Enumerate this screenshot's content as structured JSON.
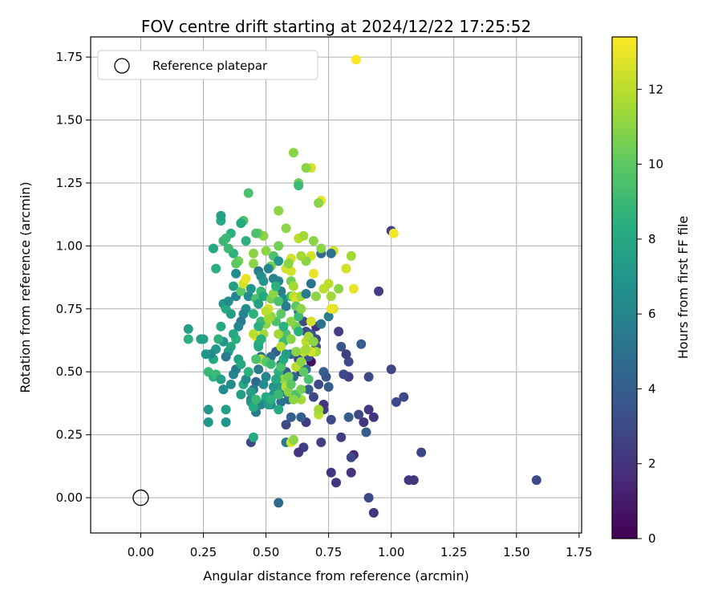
{
  "chart_data": {
    "type": "scatter",
    "title": "FOV centre drift starting at 2024/12/22 17:25:52",
    "xlabel": "Angular distance from reference (arcmin)",
    "ylabel": "Rotation from reference (arcmin)",
    "xlim": [
      -0.2,
      1.76
    ],
    "ylim": [
      -0.14,
      1.83
    ],
    "xticks": [
      "0.00",
      "0.25",
      "0.50",
      "0.75",
      "1.00",
      "1.25",
      "1.50",
      "1.75"
    ],
    "yticks": [
      "0.00",
      "0.25",
      "0.50",
      "0.75",
      "1.00",
      "1.25",
      "1.50",
      "1.75"
    ],
    "grid": true,
    "legend": {
      "placement": "top-left",
      "entries": [
        "Reference platepar"
      ]
    },
    "reference_point": {
      "x": 0.0,
      "y": 0.0
    },
    "colorbar": {
      "label": "Hours from first FF file",
      "colormap": "viridis",
      "range": [
        0,
        13.4
      ],
      "ticks": [
        "0",
        "2",
        "4",
        "6",
        "8",
        "10",
        "12"
      ]
    },
    "points": [
      [
        1.58,
        0.07,
        3.0
      ],
      [
        1.12,
        0.18,
        2.8
      ],
      [
        1.09,
        0.07,
        2.0
      ],
      [
        1.07,
        0.07,
        2.1
      ],
      [
        1.05,
        0.4,
        3.0
      ],
      [
        1.02,
        0.38,
        3.0
      ],
      [
        1.0,
        0.51,
        2.8
      ],
      [
        1.0,
        1.06,
        2.6
      ],
      [
        1.01,
        1.05,
        13.2
      ],
      [
        0.95,
        0.82,
        2.5
      ],
      [
        0.93,
        -0.06,
        2.0
      ],
      [
        0.93,
        0.32,
        2.0
      ],
      [
        0.91,
        0.35,
        2.2
      ],
      [
        0.91,
        0.0,
        3.0
      ],
      [
        0.91,
        0.48,
        3.0
      ],
      [
        0.9,
        0.26,
        4.0
      ],
      [
        0.89,
        0.3,
        2.0
      ],
      [
        0.88,
        0.61,
        4.0
      ],
      [
        0.87,
        0.33,
        3.0
      ],
      [
        0.85,
        0.17,
        1.5
      ],
      [
        0.84,
        0.16,
        3.0
      ],
      [
        0.84,
        0.1,
        2.0
      ],
      [
        0.83,
        0.32,
        4.0
      ],
      [
        0.83,
        0.48,
        2.5
      ],
      [
        0.83,
        0.54,
        3.0
      ],
      [
        0.82,
        0.57,
        2.5
      ],
      [
        0.81,
        0.49,
        3.0
      ],
      [
        0.8,
        0.6,
        3.5
      ],
      [
        0.8,
        0.24,
        2.5
      ],
      [
        0.79,
        0.66,
        2.5
      ],
      [
        0.78,
        0.06,
        2.0
      ],
      [
        0.76,
        0.1,
        2.0
      ],
      [
        0.75,
        0.44,
        4.0
      ],
      [
        0.76,
        0.31,
        3.0
      ],
      [
        0.74,
        0.48,
        3.5
      ],
      [
        0.73,
        0.5,
        4.0
      ],
      [
        0.73,
        0.35,
        2.5
      ],
      [
        0.73,
        0.37,
        2.0
      ],
      [
        0.72,
        0.22,
        2.5
      ],
      [
        0.72,
        0.97,
        4.5
      ],
      [
        0.71,
        0.45,
        3.0
      ],
      [
        0.7,
        0.6,
        3.0
      ],
      [
        0.7,
        0.63,
        3.0
      ],
      [
        0.69,
        0.4,
        3.0
      ],
      [
        0.68,
        0.54,
        0.5
      ],
      [
        0.67,
        0.43,
        4.0
      ],
      [
        0.66,
        0.3,
        2.5
      ],
      [
        0.65,
        0.2,
        2.5
      ],
      [
        0.64,
        0.32,
        4.0
      ],
      [
        0.63,
        0.18,
        2.0
      ],
      [
        0.62,
        0.4,
        4.5
      ],
      [
        0.6,
        0.32,
        4.0
      ],
      [
        0.58,
        0.29,
        3.0
      ],
      [
        0.58,
        0.22,
        5.5
      ],
      [
        0.55,
        -0.02,
        4.5
      ],
      [
        0.56,
        0.38,
        5.0
      ],
      [
        0.57,
        0.42,
        5.0
      ],
      [
        0.59,
        0.39,
        5.0
      ],
      [
        0.61,
        0.48,
        4.5
      ],
      [
        0.64,
        0.5,
        2.5
      ],
      [
        0.66,
        0.51,
        4.5
      ],
      [
        0.67,
        0.56,
        3.5
      ],
      [
        0.63,
        0.55,
        3.0
      ],
      [
        0.6,
        0.57,
        4.5
      ],
      [
        0.58,
        0.5,
        4.0
      ],
      [
        0.56,
        0.53,
        5.0
      ],
      [
        0.54,
        0.58,
        4.0
      ],
      [
        0.52,
        0.56,
        5.0
      ],
      [
        0.5,
        0.48,
        6.0
      ],
      [
        0.48,
        0.56,
        5.0
      ],
      [
        0.47,
        0.51,
        5.5
      ],
      [
        0.46,
        0.46,
        4.5
      ],
      [
        0.45,
        0.43,
        5.5
      ],
      [
        0.44,
        0.39,
        5.5
      ],
      [
        0.44,
        0.22,
        3.0
      ],
      [
        0.45,
        0.24,
        8.0
      ],
      [
        0.46,
        0.34,
        5.5
      ],
      [
        0.48,
        0.37,
        6.0
      ],
      [
        0.5,
        0.39,
        6.5
      ],
      [
        0.52,
        0.37,
        6.0
      ],
      [
        0.53,
        0.41,
        7.0
      ],
      [
        0.55,
        0.35,
        8.0
      ],
      [
        0.55,
        0.44,
        7.5
      ],
      [
        0.57,
        0.46,
        7.0
      ],
      [
        0.59,
        0.48,
        8.0
      ],
      [
        0.6,
        0.22,
        12.5
      ],
      [
        0.61,
        0.23,
        11.0
      ],
      [
        0.64,
        0.39,
        11.5
      ],
      [
        0.71,
        0.33,
        12.0
      ],
      [
        0.71,
        0.35,
        11.5
      ],
      [
        0.63,
        0.74,
        4.0
      ],
      [
        0.65,
        0.7,
        3.0
      ],
      [
        0.66,
        0.66,
        3.0
      ],
      [
        0.68,
        0.65,
        3.5
      ],
      [
        0.7,
        0.68,
        2.0
      ],
      [
        0.72,
        0.69,
        5.0
      ],
      [
        0.75,
        0.72,
        5.5
      ],
      [
        0.77,
        0.75,
        12.5
      ],
      [
        0.76,
        0.75,
        13.0
      ],
      [
        0.75,
        0.85,
        12.0
      ],
      [
        0.73,
        0.83,
        12.0
      ],
      [
        0.76,
        0.8,
        11.5
      ],
      [
        0.77,
        0.98,
        12.5
      ],
      [
        0.76,
        0.97,
        5.0
      ],
      [
        0.79,
        0.83,
        11.0
      ],
      [
        0.82,
        0.91,
        12.5
      ],
      [
        0.84,
        0.96,
        11.5
      ],
      [
        0.85,
        0.83,
        13.0
      ],
      [
        0.86,
        1.74,
        13.4
      ],
      [
        0.72,
        1.18,
        13.0
      ],
      [
        0.71,
        1.17,
        11.0
      ],
      [
        0.68,
        1.31,
        12.5
      ],
      [
        0.66,
        1.31,
        11.0
      ],
      [
        0.61,
        1.37,
        11.0
      ],
      [
        0.63,
        1.25,
        10.5
      ],
      [
        0.63,
        1.24,
        9.0
      ],
      [
        0.63,
        1.03,
        12.0
      ],
      [
        0.65,
        1.04,
        11.5
      ],
      [
        0.69,
        1.02,
        11.0
      ],
      [
        0.72,
        0.99,
        11.0
      ],
      [
        0.68,
        0.96,
        12.5
      ],
      [
        0.66,
        0.94,
        11.0
      ],
      [
        0.64,
        0.96,
        11.5
      ],
      [
        0.6,
        0.95,
        12.5
      ],
      [
        0.6,
        0.9,
        12.5
      ],
      [
        0.58,
        1.07,
        11.0
      ],
      [
        0.55,
        1.14,
        11.0
      ],
      [
        0.55,
        1.0,
        10.5
      ],
      [
        0.53,
        0.96,
        9.5
      ],
      [
        0.55,
        0.94,
        7.0
      ],
      [
        0.52,
        0.92,
        10.5
      ],
      [
        0.5,
        0.98,
        11.0
      ],
      [
        0.49,
        1.04,
        11.0
      ],
      [
        0.47,
        1.05,
        10.5
      ],
      [
        0.46,
        1.05,
        9.5
      ],
      [
        0.45,
        0.97,
        11.0
      ],
      [
        0.45,
        0.93,
        11.0
      ],
      [
        0.47,
        0.9,
        5.5
      ],
      [
        0.48,
        0.88,
        6.5
      ],
      [
        0.49,
        0.86,
        7.0
      ],
      [
        0.51,
        0.91,
        6.0
      ],
      [
        0.53,
        0.87,
        6.0
      ],
      [
        0.55,
        0.86,
        6.0
      ],
      [
        0.56,
        0.82,
        5.5
      ],
      [
        0.57,
        0.79,
        6.5
      ],
      [
        0.58,
        0.76,
        5.5
      ],
      [
        0.6,
        0.8,
        9.0
      ],
      [
        0.61,
        0.8,
        12.0
      ],
      [
        0.62,
        0.79,
        12.5
      ],
      [
        0.64,
        0.8,
        11.5
      ],
      [
        0.66,
        0.81,
        5.5
      ],
      [
        0.68,
        0.85,
        5.0
      ],
      [
        0.69,
        0.89,
        13.0
      ],
      [
        0.7,
        0.8,
        11.0
      ],
      [
        0.62,
        0.68,
        10.5
      ],
      [
        0.6,
        0.7,
        11.0
      ],
      [
        0.58,
        0.65,
        9.5
      ],
      [
        0.57,
        0.62,
        9.0
      ],
      [
        0.56,
        0.6,
        12.0
      ],
      [
        0.55,
        0.65,
        11.5
      ],
      [
        0.54,
        0.7,
        9.5
      ],
      [
        0.52,
        0.72,
        11.0
      ],
      [
        0.51,
        0.75,
        12.5
      ],
      [
        0.5,
        0.69,
        11.0
      ],
      [
        0.49,
        0.65,
        11.5
      ],
      [
        0.48,
        0.7,
        9.0
      ],
      [
        0.47,
        0.68,
        8.5
      ],
      [
        0.46,
        0.64,
        13.0
      ],
      [
        0.45,
        0.65,
        12.0
      ],
      [
        0.47,
        0.61,
        8.0
      ],
      [
        0.48,
        0.55,
        12.0
      ],
      [
        0.5,
        0.54,
        10.0
      ],
      [
        0.52,
        0.53,
        9.0
      ],
      [
        0.55,
        0.5,
        8.5
      ],
      [
        0.57,
        0.47,
        11.0
      ],
      [
        0.58,
        0.44,
        12.0
      ],
      [
        0.59,
        0.42,
        11.0
      ],
      [
        0.62,
        0.41,
        9.5
      ],
      [
        0.64,
        0.43,
        10.5
      ],
      [
        0.65,
        0.58,
        12.0
      ],
      [
        0.66,
        0.62,
        12.0
      ],
      [
        0.67,
        0.64,
        11.5
      ],
      [
        0.68,
        0.7,
        12.5
      ],
      [
        0.69,
        0.62,
        11.0
      ],
      [
        0.7,
        0.58,
        11.5
      ],
      [
        0.68,
        0.58,
        12.5
      ],
      [
        0.66,
        0.59,
        11.5
      ],
      [
        0.63,
        0.66,
        8.5
      ],
      [
        0.62,
        0.58,
        11.0
      ],
      [
        0.6,
        0.63,
        11.0
      ],
      [
        0.43,
        1.21,
        9.5
      ],
      [
        0.42,
        1.02,
        8.5
      ],
      [
        0.41,
        1.1,
        9.5
      ],
      [
        0.4,
        1.09,
        8.0
      ],
      [
        0.39,
        0.94,
        10.5
      ],
      [
        0.38,
        0.93,
        10.0
      ],
      [
        0.38,
        0.89,
        6.5
      ],
      [
        0.37,
        0.97,
        8.5
      ],
      [
        0.36,
        1.05,
        8.5
      ],
      [
        0.35,
        0.99,
        9.0
      ],
      [
        0.34,
        1.03,
        9.0
      ],
      [
        0.33,
        1.02,
        9.0
      ],
      [
        0.32,
        1.1,
        8.0
      ],
      [
        0.32,
        1.12,
        7.5
      ],
      [
        0.29,
        0.99,
        8.0
      ],
      [
        0.3,
        0.91,
        8.5
      ],
      [
        0.33,
        0.77,
        7.0
      ],
      [
        0.34,
        0.75,
        8.0
      ],
      [
        0.35,
        0.78,
        6.5
      ],
      [
        0.36,
        0.73,
        7.5
      ],
      [
        0.37,
        0.84,
        7.5
      ],
      [
        0.38,
        0.8,
        6.0
      ],
      [
        0.4,
        0.82,
        10.0
      ],
      [
        0.41,
        0.85,
        12.5
      ],
      [
        0.42,
        0.87,
        13.0
      ],
      [
        0.43,
        0.8,
        6.5
      ],
      [
        0.44,
        0.83,
        7.0
      ],
      [
        0.42,
        0.75,
        6.5
      ],
      [
        0.41,
        0.73,
        6.0
      ],
      [
        0.4,
        0.7,
        5.5
      ],
      [
        0.39,
        0.68,
        6.0
      ],
      [
        0.38,
        0.63,
        8.5
      ],
      [
        0.37,
        0.65,
        8.0
      ],
      [
        0.36,
        0.6,
        8.0
      ],
      [
        0.35,
        0.58,
        7.5
      ],
      [
        0.34,
        0.56,
        5.5
      ],
      [
        0.33,
        0.62,
        7.0
      ],
      [
        0.32,
        0.68,
        8.0
      ],
      [
        0.31,
        0.63,
        8.5
      ],
      [
        0.3,
        0.59,
        7.0
      ],
      [
        0.29,
        0.55,
        8.0
      ],
      [
        0.28,
        0.57,
        6.5
      ],
      [
        0.27,
        0.5,
        9.0
      ],
      [
        0.26,
        0.57,
        7.0
      ],
      [
        0.25,
        0.63,
        7.5
      ],
      [
        0.19,
        0.63,
        8.5
      ],
      [
        0.19,
        0.67,
        7.5
      ],
      [
        0.24,
        0.63,
        7.5
      ],
      [
        0.27,
        0.35,
        7.0
      ],
      [
        0.27,
        0.3,
        7.0
      ],
      [
        0.29,
        0.48,
        8.5
      ],
      [
        0.3,
        0.49,
        9.0
      ],
      [
        0.32,
        0.47,
        7.5
      ],
      [
        0.33,
        0.43,
        6.0
      ],
      [
        0.33,
        0.43,
        6.5
      ],
      [
        0.34,
        0.3,
        7.0
      ],
      [
        0.34,
        0.35,
        7.5
      ],
      [
        0.36,
        0.45,
        6.5
      ],
      [
        0.37,
        0.49,
        6.0
      ],
      [
        0.38,
        0.51,
        5.5
      ],
      [
        0.39,
        0.55,
        7.5
      ],
      [
        0.4,
        0.53,
        8.0
      ],
      [
        0.4,
        0.41,
        7.5
      ],
      [
        0.41,
        0.45,
        8.0
      ],
      [
        0.42,
        0.47,
        6.5
      ],
      [
        0.43,
        0.5,
        8.5
      ],
      [
        0.44,
        0.42,
        7.5
      ],
      [
        0.44,
        0.38,
        7.0
      ],
      [
        0.45,
        0.36,
        8.0
      ],
      [
        0.46,
        0.39,
        9.0
      ],
      [
        0.46,
        0.55,
        9.5
      ],
      [
        0.47,
        0.6,
        8.0
      ],
      [
        0.48,
        0.63,
        8.5
      ],
      [
        0.49,
        0.45,
        6.5
      ],
      [
        0.5,
        0.4,
        8.0
      ],
      [
        0.51,
        0.37,
        7.5
      ],
      [
        0.52,
        0.39,
        8.5
      ],
      [
        0.53,
        0.44,
        7.0
      ],
      [
        0.54,
        0.47,
        8.0
      ],
      [
        0.55,
        0.41,
        9.0
      ],
      [
        0.56,
        0.52,
        9.5
      ],
      [
        0.57,
        0.55,
        8.0
      ],
      [
        0.58,
        0.57,
        7.5
      ],
      [
        0.59,
        0.48,
        10.5
      ],
      [
        0.6,
        0.45,
        10.0
      ],
      [
        0.61,
        0.39,
        11.0
      ],
      [
        0.62,
        0.52,
        12.0
      ],
      [
        0.64,
        0.54,
        11.0
      ],
      [
        0.65,
        0.5,
        10.0
      ],
      [
        0.67,
        0.47,
        9.5
      ],
      [
        0.45,
        0.73,
        8.5
      ],
      [
        0.46,
        0.79,
        9.5
      ],
      [
        0.47,
        0.77,
        7.5
      ],
      [
        0.48,
        0.82,
        9.0
      ],
      [
        0.49,
        0.8,
        8.0
      ],
      [
        0.5,
        0.74,
        12.0
      ],
      [
        0.51,
        0.71,
        11.5
      ],
      [
        0.52,
        0.79,
        10.5
      ],
      [
        0.53,
        0.81,
        11.0
      ],
      [
        0.54,
        0.84,
        8.5
      ],
      [
        0.55,
        0.78,
        9.5
      ],
      [
        0.56,
        0.73,
        10.0
      ],
      [
        0.57,
        0.68,
        8.5
      ],
      [
        0.58,
        0.91,
        12.5
      ],
      [
        0.59,
        0.93,
        11.0
      ],
      [
        0.6,
        0.86,
        10.5
      ],
      [
        0.61,
        0.84,
        11.5
      ],
      [
        0.62,
        0.76,
        10.0
      ],
      [
        0.63,
        0.72,
        9.0
      ],
      [
        0.64,
        0.75,
        11.0
      ]
    ]
  }
}
